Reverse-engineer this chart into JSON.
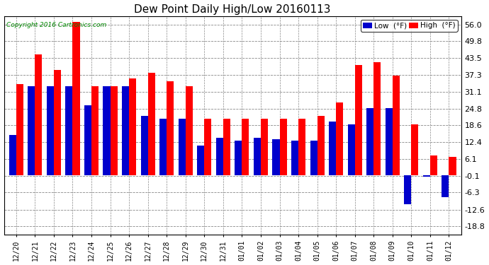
{
  "title": "Dew Point Daily High/Low 20160113",
  "copyright": "Copyright 2016 Cartronics.com",
  "yticks": [
    -18.8,
    -12.6,
    -6.3,
    -0.1,
    6.1,
    12.4,
    18.6,
    24.8,
    31.1,
    37.3,
    43.5,
    49.8,
    56.0
  ],
  "ylim": [
    -22.0,
    59.0
  ],
  "categories": [
    "12/20",
    "12/21",
    "12/22",
    "12/23",
    "12/24",
    "12/25",
    "12/26",
    "12/27",
    "12/28",
    "12/29",
    "12/30",
    "12/31",
    "01/01",
    "01/02",
    "01/03",
    "01/04",
    "01/05",
    "01/06",
    "01/07",
    "01/08",
    "01/09",
    "01/10",
    "01/11",
    "01/12"
  ],
  "high_values": [
    34.0,
    45.0,
    39.0,
    57.0,
    33.0,
    33.0,
    36.0,
    38.0,
    35.0,
    33.0,
    21.0,
    21.0,
    21.0,
    21.0,
    21.0,
    21.0,
    22.0,
    27.0,
    41.0,
    42.0,
    37.0,
    19.0,
    7.5,
    7.0
  ],
  "low_values": [
    15.0,
    33.0,
    33.0,
    33.0,
    26.0,
    33.0,
    33.0,
    22.0,
    21.0,
    21.0,
    11.0,
    14.0,
    13.0,
    14.0,
    13.5,
    13.0,
    13.0,
    20.0,
    19.0,
    25.0,
    25.0,
    -10.5,
    -0.5,
    -8.0
  ],
  "high_color": "#ff0000",
  "low_color": "#0000cc",
  "background_color": "#ffffff",
  "grid_color": "#888888",
  "bar_width": 0.38,
  "legend_low_label": "Low  (°F)",
  "legend_high_label": "High  (°F)",
  "figsize": [
    6.9,
    3.75
  ],
  "dpi": 100
}
